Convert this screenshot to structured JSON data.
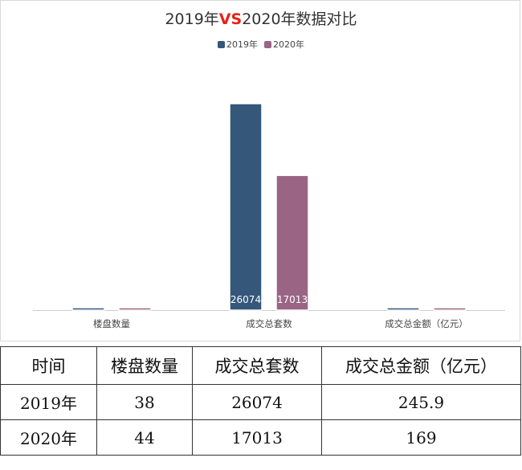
{
  "chart_data": {
    "type": "bar",
    "title_parts": [
      "2019年",
      "VS",
      "2020年数据对比"
    ],
    "categories": [
      "楼盘数量",
      "成交总套数",
      "成交总金额（亿元）"
    ],
    "series": [
      {
        "name": "2019年",
        "values": [
          38,
          26074,
          245.9
        ],
        "color": "#34577a"
      },
      {
        "name": "2020年",
        "values": [
          44,
          17013,
          169
        ],
        "color": "#9a6584"
      }
    ],
    "data_labels_shown": [
      [
        null,
        "26074",
        null
      ],
      [
        null,
        "17013",
        null
      ]
    ],
    "ylim": [
      0,
      26074
    ],
    "legend_position": "top-center",
    "grid": false,
    "accent_color": "#e8201a"
  },
  "table": {
    "headers": [
      "时间",
      "楼盘数量",
      "成交总套数",
      "成交总金额（亿元）"
    ],
    "rows": [
      [
        "2019年",
        "38",
        "26074",
        "245.9"
      ],
      [
        "2020年",
        "44",
        "17013",
        "169"
      ]
    ]
  }
}
